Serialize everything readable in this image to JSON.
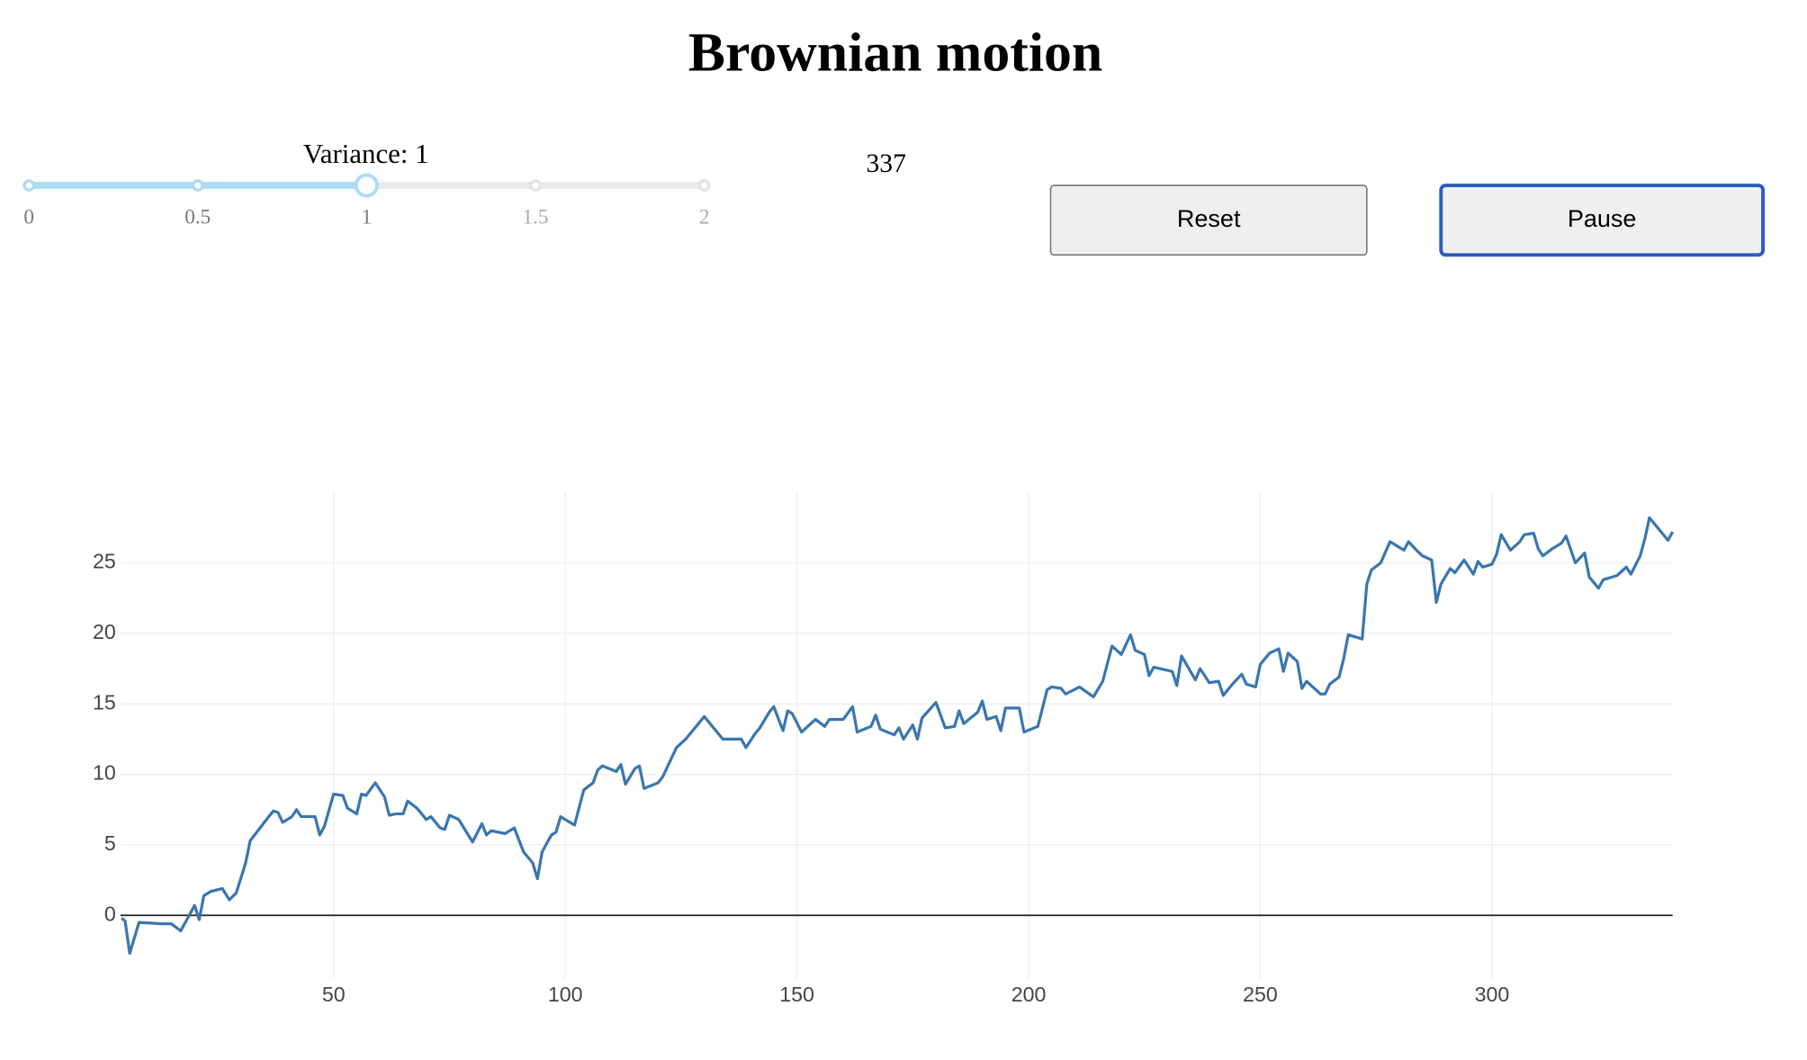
{
  "title": "Brownian motion",
  "slider": {
    "label": "Variance: 1",
    "value": 1,
    "ticks": [
      0,
      0.5,
      1,
      1.5,
      2
    ]
  },
  "counter": 337,
  "buttons": [
    "Reset",
    "Pause"
  ],
  "chart_data": {
    "type": "line",
    "color": "#3a76af",
    "x": [
      4.25,
      5,
      6,
      8,
      13,
      15,
      17,
      19,
      20,
      21,
      22,
      23.5,
      26,
      27.5,
      29,
      31,
      32,
      36,
      37,
      38,
      39,
      41,
      42,
      43,
      46,
      47,
      48,
      50,
      52,
      53,
      55,
      56,
      57,
      59,
      61,
      62,
      63.5,
      65,
      66,
      68,
      70,
      71,
      73,
      74,
      75,
      77,
      80,
      82,
      83,
      84,
      87,
      89,
      91,
      93,
      94,
      95,
      97,
      98,
      99,
      102,
      104,
      106,
      107,
      108,
      111,
      112,
      113,
      115,
      116,
      117,
      120,
      121,
      124,
      126,
      130,
      134,
      138,
      139,
      141,
      142,
      144,
      145,
      147,
      148,
      149,
      151,
      154,
      156,
      157,
      160,
      162,
      163,
      166,
      167,
      168,
      171,
      172,
      173,
      175,
      176,
      177,
      180,
      182,
      184,
      185,
      186,
      189,
      190,
      191,
      193,
      194,
      195,
      198,
      199,
      202,
      204,
      205,
      207,
      208,
      211,
      214,
      216,
      218,
      220,
      222,
      223,
      225,
      226,
      227,
      231,
      232,
      233,
      236,
      237,
      239,
      241,
      242,
      244,
      246,
      247,
      249,
      250,
      252,
      254,
      255,
      256,
      258,
      259,
      260,
      263,
      264,
      265,
      267,
      268,
      269,
      272,
      273,
      274,
      276,
      278,
      281,
      282,
      284,
      285,
      287,
      288,
      289,
      291,
      292,
      294,
      296,
      297,
      298,
      300,
      301,
      302,
      304,
      306,
      307,
      309,
      310,
      311,
      313,
      315,
      316,
      318,
      320,
      321,
      323,
      324,
      327,
      329,
      330,
      332,
      333,
      334,
      338,
      339
    ],
    "values": [
      -0.2,
      -0.4,
      -2.7,
      -0.5,
      -0.6,
      -0.6,
      -1.1,
      0.1,
      0.7,
      -0.3,
      1.4,
      1.7,
      1.9,
      1.1,
      1.6,
      3.7,
      5.3,
      7.0,
      7.4,
      7.3,
      6.6,
      7.0,
      7.5,
      7.0,
      7.0,
      5.7,
      6.3,
      8.6,
      8.5,
      7.6,
      7.2,
      8.6,
      8.5,
      9.4,
      8.4,
      7.1,
      7.2,
      7.2,
      8.1,
      7.6,
      6.8,
      7.0,
      6.2,
      6.1,
      7.1,
      6.8,
      5.2,
      6.5,
      5.7,
      6.0,
      5.8,
      6.2,
      4.5,
      3.7,
      2.6,
      4.5,
      5.7,
      5.9,
      7.0,
      6.4,
      8.9,
      9.4,
      10.3,
      10.6,
      10.2,
      10.7,
      9.3,
      10.4,
      10.6,
      9.0,
      9.4,
      9.8,
      11.9,
      12.5,
      14.1,
      12.5,
      12.5,
      11.9,
      12.9,
      13.3,
      14.4,
      14.8,
      13.1,
      14.5,
      14.3,
      13.0,
      13.9,
      13.4,
      13.9,
      13.9,
      14.8,
      13.0,
      13.4,
      14.2,
      13.2,
      12.8,
      13.3,
      12.5,
      13.5,
      12.5,
      14.0,
      15.1,
      13.3,
      13.4,
      14.5,
      13.6,
      14.4,
      15.2,
      13.9,
      14.1,
      13.1,
      14.7,
      14.7,
      13.0,
      13.4,
      16.0,
      16.2,
      16.1,
      15.7,
      16.2,
      15.5,
      16.6,
      19.1,
      18.5,
      19.9,
      18.8,
      18.5,
      17.0,
      17.6,
      17.3,
      16.3,
      18.4,
      16.7,
      17.5,
      16.5,
      16.6,
      15.6,
      16.4,
      17.1,
      16.4,
      16.2,
      17.8,
      18.6,
      18.9,
      17.3,
      18.6,
      18.0,
      16.1,
      16.6,
      15.7,
      15.7,
      16.4,
      16.9,
      18.2,
      19.9,
      19.6,
      23.5,
      24.5,
      25.0,
      26.5,
      25.9,
      26.5,
      25.8,
      25.5,
      25.2,
      22.2,
      23.5,
      24.6,
      24.3,
      25.2,
      24.2,
      25.1,
      24.7,
      24.9,
      25.6,
      27.0,
      25.9,
      26.5,
      27.0,
      27.1,
      26.0,
      25.5,
      26.0,
      26.4,
      26.9,
      25.0,
      25.7,
      24.0,
      23.2,
      23.8,
      24.1,
      24.7,
      24.2,
      25.5,
      26.7,
      28.2,
      26.6,
      27.2
    ],
    "xlim": [
      4,
      339
    ],
    "ylim": [
      -4.5,
      30
    ],
    "xticks": [
      50,
      100,
      150,
      200,
      250,
      300
    ],
    "yticks": [
      0,
      5,
      10,
      15,
      20,
      25
    ],
    "grid": true
  }
}
